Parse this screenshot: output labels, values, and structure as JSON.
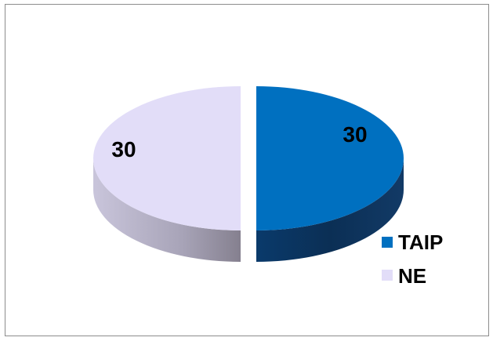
{
  "chart_data": {
    "type": "pie",
    "style": "3d-exploded",
    "categories": [
      "TAIP",
      "NE"
    ],
    "values": [
      30,
      30
    ],
    "colors": {
      "TAIP": {
        "top": "#0070c0",
        "side_light": "#005a9e",
        "side_dark": "#0b2f55"
      },
      "NE": {
        "top": "#e2ddf8",
        "side_light": "#c7c3d9",
        "side_dark": "#8c8799"
      }
    },
    "data_labels": [
      "30",
      "30"
    ],
    "legend": {
      "position": "bottom-right",
      "entries": [
        "TAIP",
        "NE"
      ]
    },
    "title": ""
  }
}
